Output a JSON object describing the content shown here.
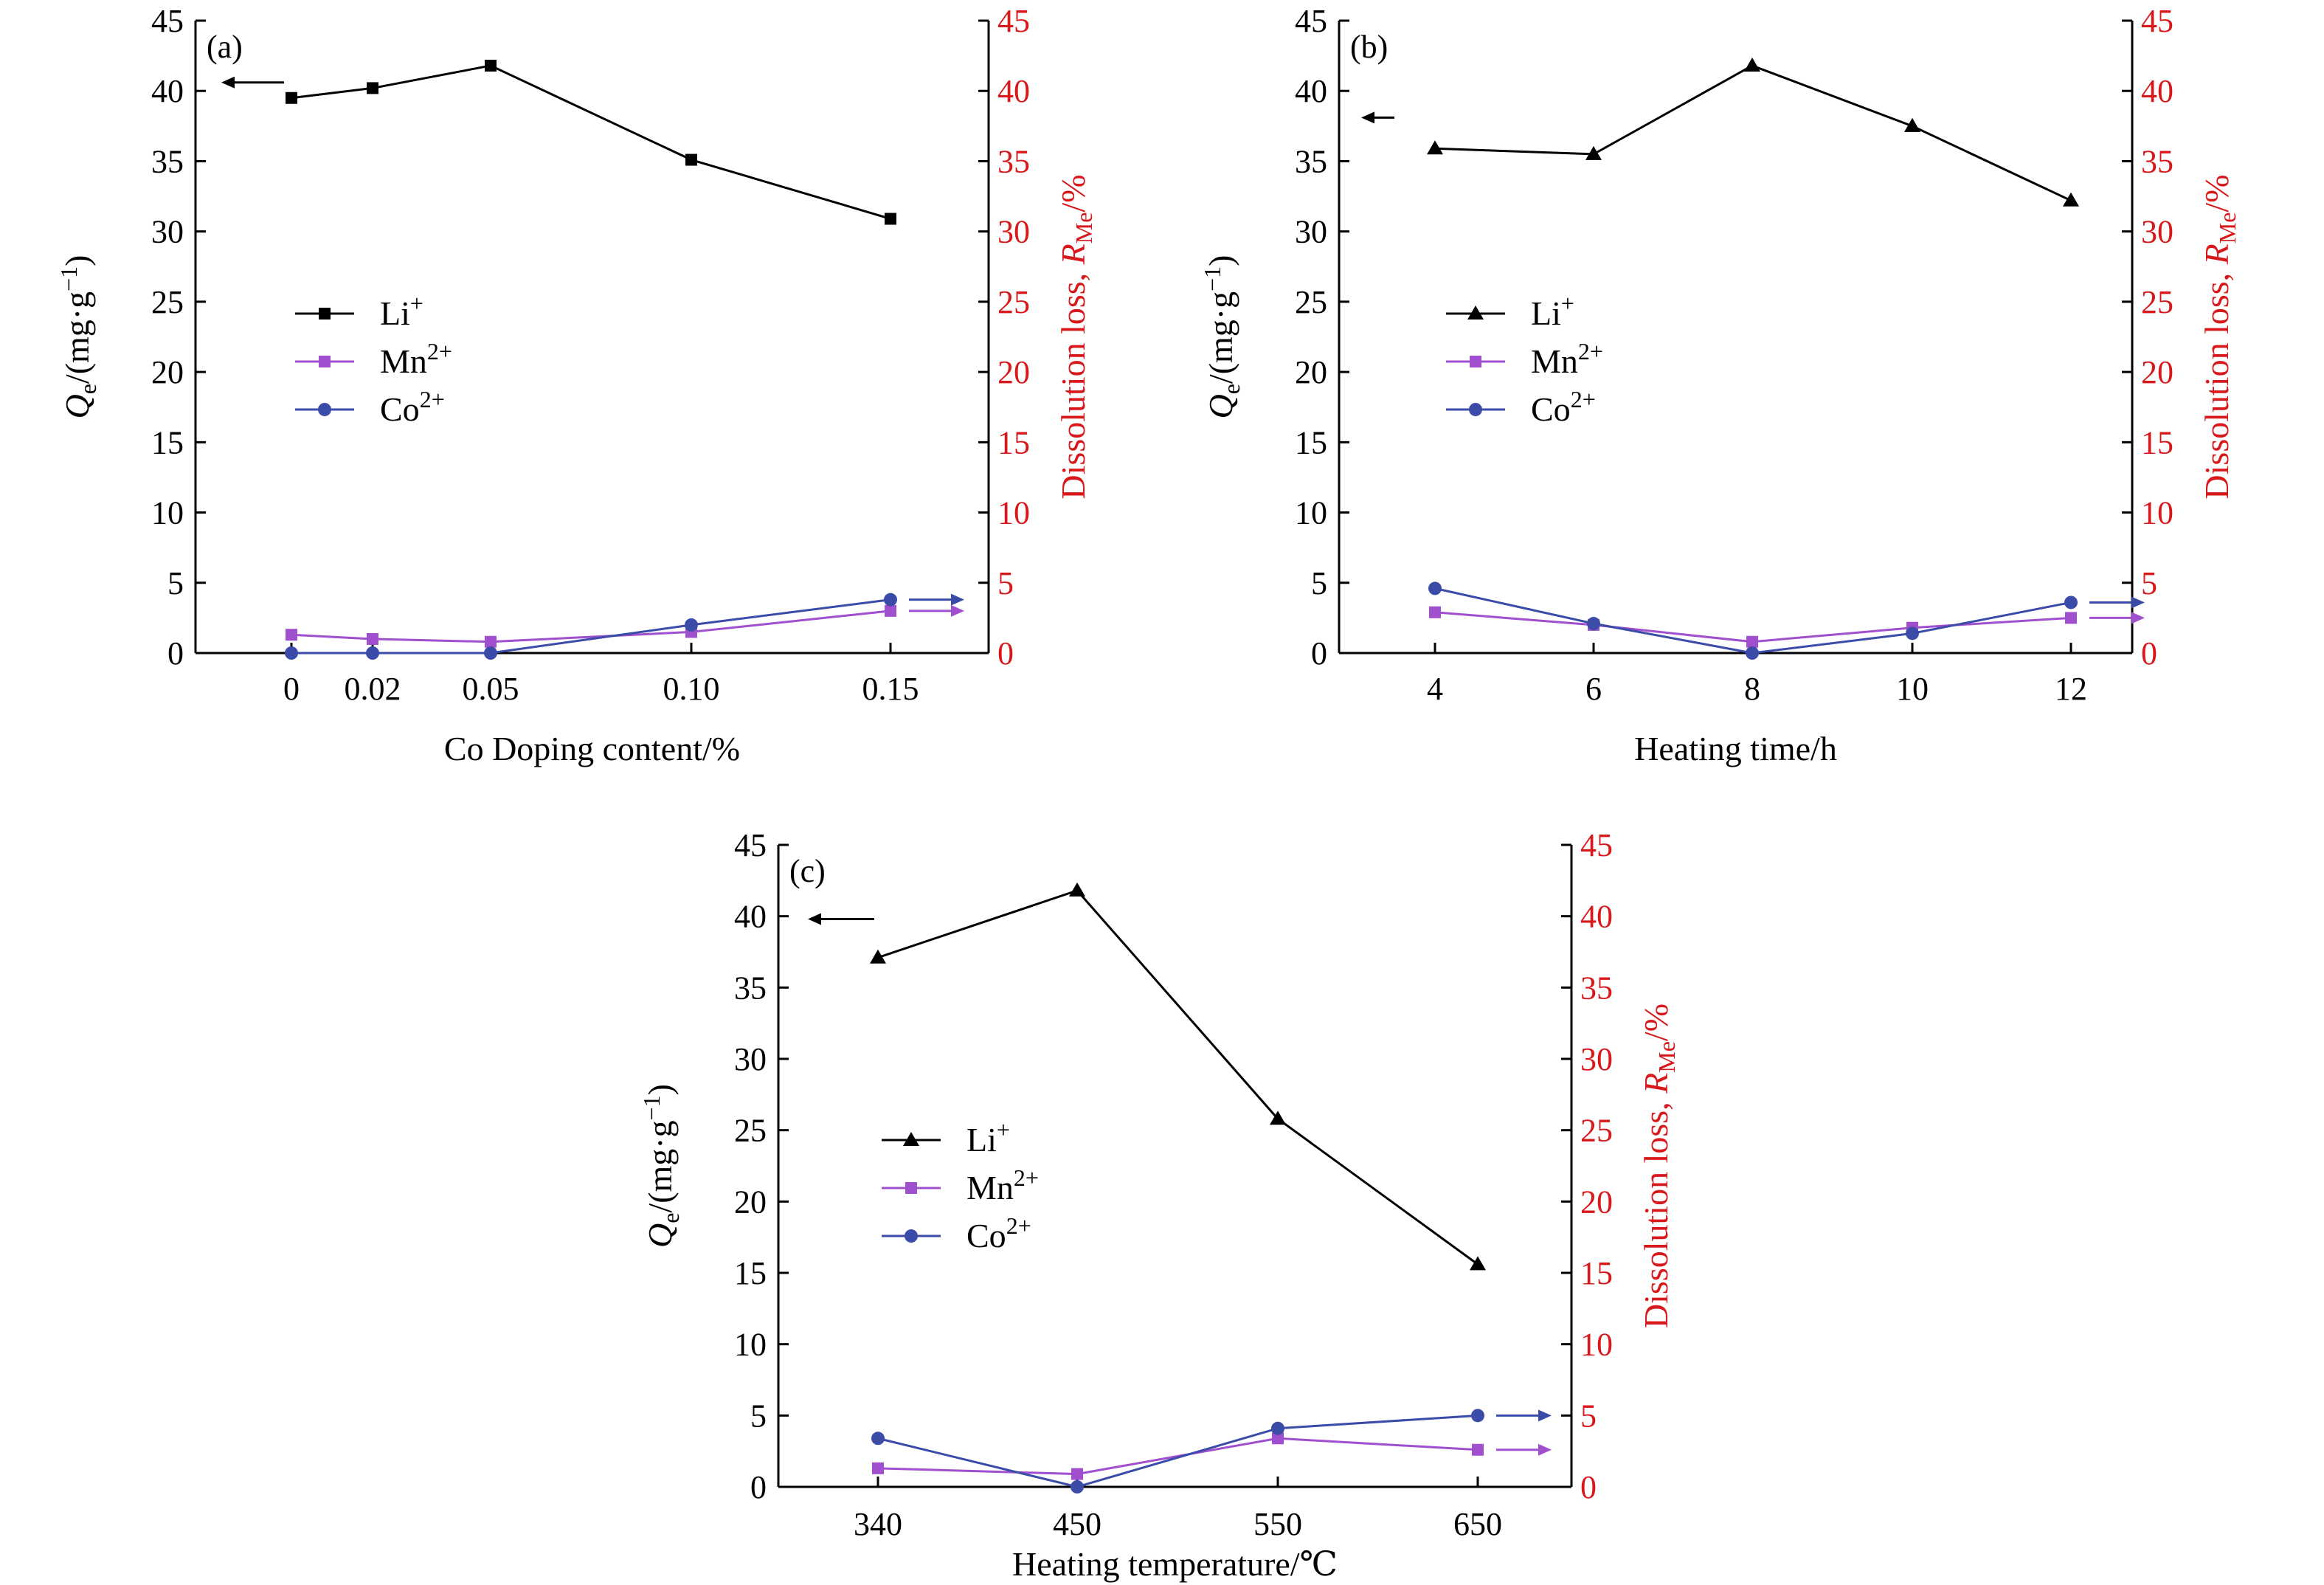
{
  "chart_data": [
    {
      "panel_label": "(a)",
      "type": "line",
      "categories": [
        "0",
        "0.02",
        "0.05",
        "0.10",
        "0.15"
      ],
      "x": [
        0,
        0.02,
        0.05,
        0.1,
        0.15
      ],
      "xlabel": "Co Doping content/%",
      "ylabel_left": {
        "main": "Q",
        "sub": "e",
        "rest": "/(mg·g",
        "sup": "−1",
        "close": ")"
      },
      "ylabel_right": {
        "main": "Dissolution loss, ",
        "italic": "R",
        "sub": "Me",
        "rest": "/%"
      },
      "ylim": [
        0,
        45
      ],
      "yticks": [
        0,
        5,
        10,
        15,
        20,
        25,
        30,
        35,
        40,
        45
      ],
      "legend_position": "middle-left",
      "series": [
        {
          "name": "Li",
          "sup": "+",
          "marker": "square",
          "color": "#000000",
          "axis": "left",
          "values": [
            39.5,
            40.2,
            41.8,
            35.1,
            30.9
          ]
        },
        {
          "name": "Mn",
          "sup": "2+",
          "marker": "square",
          "color": "#a04fcf",
          "axis": "right",
          "values": [
            1.3,
            1.0,
            0.8,
            1.5,
            3.0
          ]
        },
        {
          "name": "Co",
          "sup": "2+",
          "marker": "circle",
          "color": "#3b4ba8",
          "axis": "right",
          "values": [
            0,
            0,
            0,
            2.0,
            3.8
          ]
        }
      ]
    },
    {
      "panel_label": "(b)",
      "type": "line",
      "categories": [
        "4",
        "6",
        "8",
        "10",
        "12"
      ],
      "x": [
        4,
        6,
        8,
        10,
        12
      ],
      "xlabel": "Heating time/h",
      "ylabel_left": {
        "main": "Q",
        "sub": "e",
        "rest": "/(mg·g",
        "sup": "−1",
        "close": ")"
      },
      "ylabel_right": {
        "main": "Dissolution loss, ",
        "italic": "R",
        "sub": "Me",
        "rest": "/%"
      },
      "ylim": [
        0,
        45
      ],
      "yticks": [
        0,
        5,
        10,
        15,
        20,
        25,
        30,
        35,
        40,
        45
      ],
      "legend_position": "middle-left",
      "series": [
        {
          "name": "Li",
          "sup": "+",
          "marker": "triangle",
          "color": "#000000",
          "axis": "left",
          "values": [
            35.9,
            35.5,
            41.8,
            37.5,
            32.2
          ]
        },
        {
          "name": "Mn",
          "sup": "2+",
          "marker": "square",
          "color": "#a04fcf",
          "axis": "right",
          "values": [
            2.9,
            2.0,
            0.8,
            1.8,
            2.5
          ]
        },
        {
          "name": "Co",
          "sup": "2+",
          "marker": "circle",
          "color": "#3b4ba8",
          "axis": "right",
          "values": [
            4.6,
            2.1,
            0,
            1.4,
            3.6
          ]
        }
      ]
    },
    {
      "panel_label": "(c)",
      "type": "line",
      "categories": [
        "340",
        "450",
        "550",
        "650"
      ],
      "x": [
        340,
        450,
        550,
        650
      ],
      "xlabel": "Heating temperature/℃",
      "ylabel_left": {
        "main": "Q",
        "sub": "e",
        "rest": "/(mg·g",
        "sup": "−1",
        "close": ")"
      },
      "ylabel_right": {
        "main": "Dissolution loss, ",
        "italic": "R",
        "sub": "Me",
        "rest": "/%"
      },
      "ylim": [
        0,
        45
      ],
      "yticks": [
        0,
        5,
        10,
        15,
        20,
        25,
        30,
        35,
        40,
        45
      ],
      "legend_position": "middle-left",
      "series": [
        {
          "name": "Li",
          "sup": "+",
          "marker": "triangle",
          "color": "#000000",
          "axis": "left",
          "values": [
            37.1,
            41.8,
            25.8,
            15.6
          ]
        },
        {
          "name": "Mn",
          "sup": "2+",
          "marker": "square",
          "color": "#a04fcf",
          "axis": "right",
          "values": [
            1.3,
            0.9,
            3.4,
            2.6
          ]
        },
        {
          "name": "Co",
          "sup": "2+",
          "marker": "circle",
          "color": "#3b4ba8",
          "axis": "right",
          "values": [
            3.4,
            0,
            4.1,
            5.0
          ]
        }
      ]
    }
  ],
  "colors": {
    "left_axis": "#000000",
    "right_axis": "#d7191c"
  }
}
